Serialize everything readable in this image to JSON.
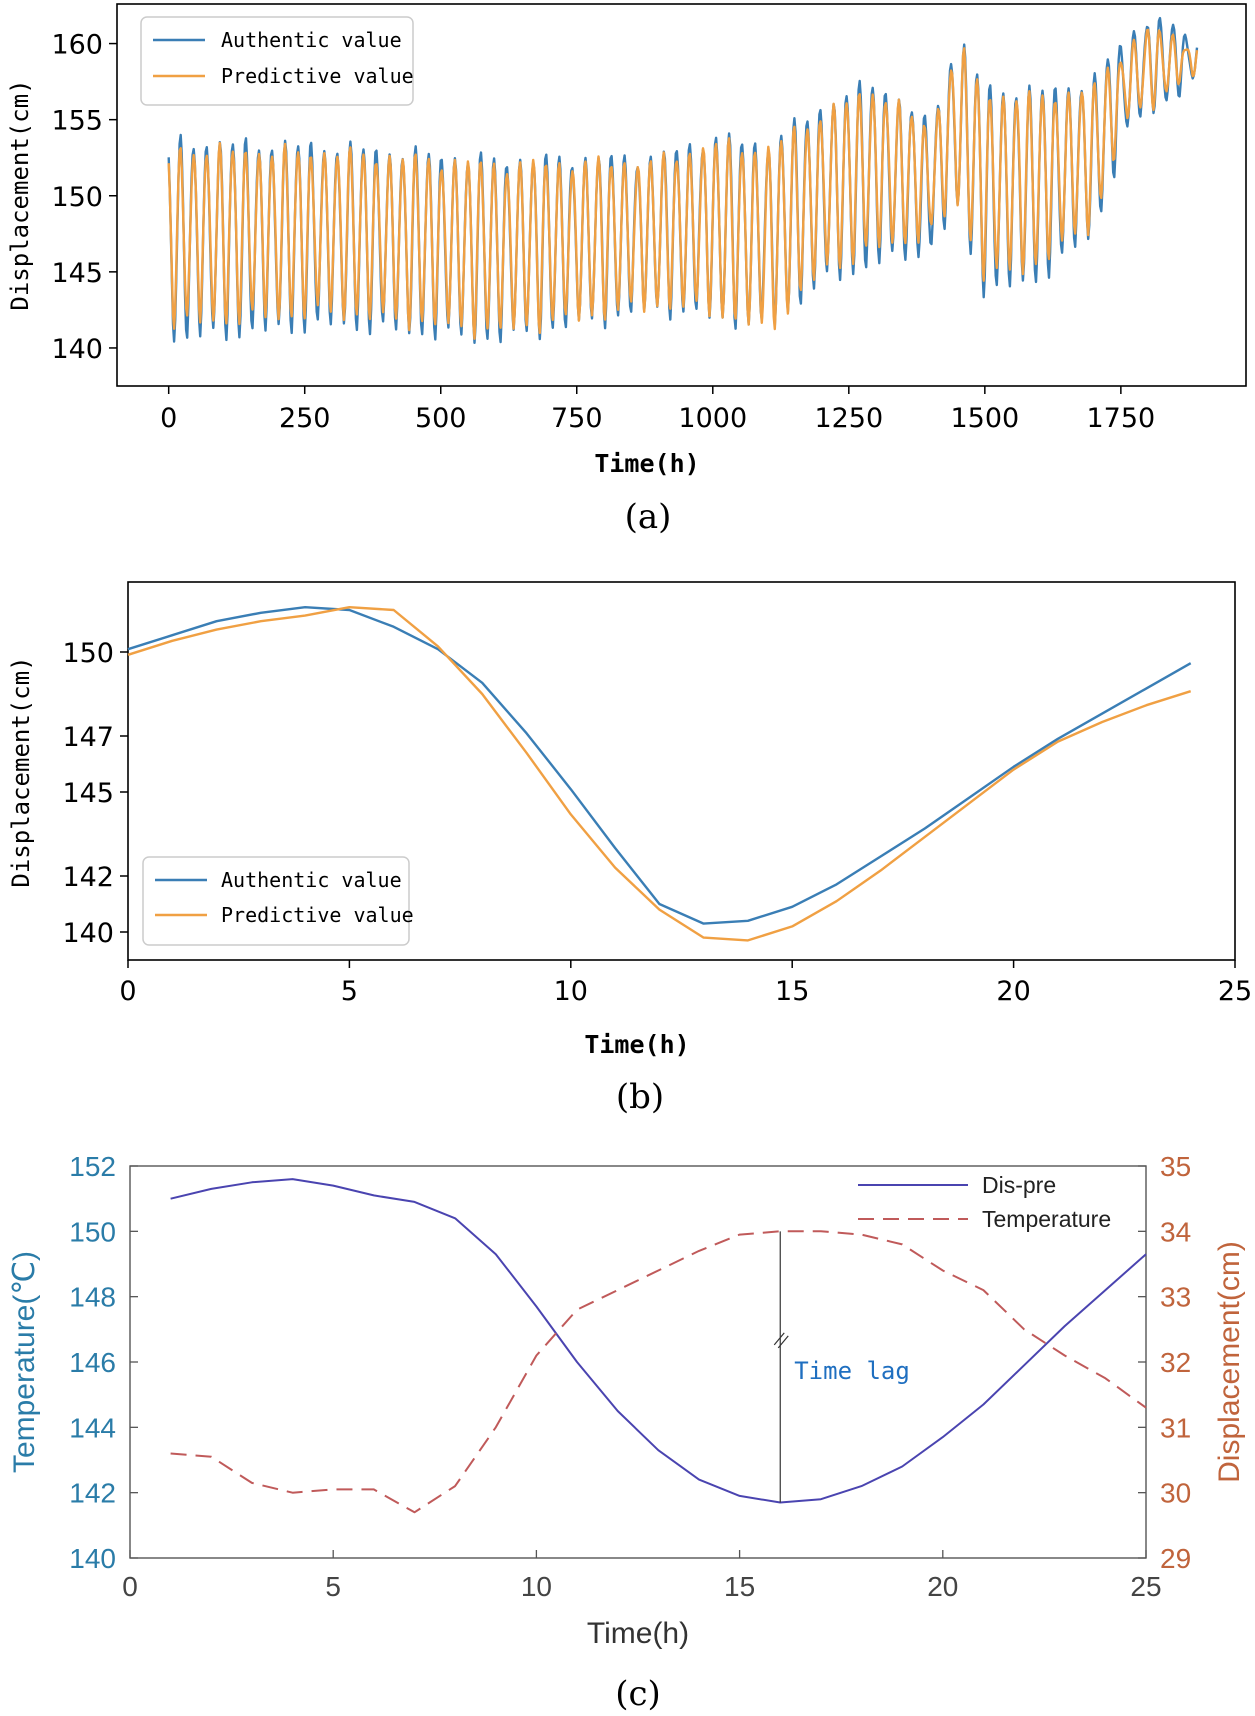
{
  "colors": {
    "authentic": "#3a7eb5",
    "predictive": "#f0a043",
    "dis_pre": "#4a44b0",
    "temperature": "#c05a5a",
    "left_axis_c": "#2a7ca8",
    "right_axis_c": "#c0643c",
    "annotation": "#1f6fc0"
  },
  "chart_data": [
    {
      "type": "line",
      "caption": "(a)",
      "xlabel": "Time(h)",
      "ylabel": "Displacement(cm)",
      "xlim": [
        -95,
        1980
      ],
      "ylim": [
        137.5,
        162.6
      ],
      "xticks": [
        0,
        250,
        500,
        750,
        1000,
        1250,
        1500,
        1750
      ],
      "yticks": [
        140,
        145,
        150,
        155,
        160
      ],
      "legend": {
        "placement": "top-left",
        "entries": [
          "Authentic value",
          "Predictive value"
        ]
      },
      "series": [
        {
          "name": "Authentic value",
          "color_key": "authentic",
          "anchors": {
            "x": [
              0,
              300,
              600,
              900,
              1000,
              1100,
              1200,
              1300,
              1400,
              1450,
              1500,
              1600,
              1700,
              1760,
              1800,
              1890
            ],
            "max": [
              153.5,
              153.2,
              152.3,
              152.5,
              153.8,
              153.3,
              155.8,
              157.5,
              154.5,
              160.5,
              157.0,
              156.8,
              157.5,
              160.5,
              161.5,
              160.5
            ],
            "min": [
              140.5,
              141.5,
              140.5,
              142.5,
              142.0,
              141.2,
              144.3,
              145.5,
              146.5,
              149.0,
              143.5,
              144.5,
              147.5,
              154.0,
              155.5,
              157.5
            ]
          }
        },
        {
          "name": "Predictive value",
          "color_key": "predictive",
          "anchors": {
            "x": [
              0,
              300,
              600,
              900,
              1000,
              1100,
              1200,
              1300,
              1400,
              1450,
              1500,
              1600,
              1700,
              1760,
              1800,
              1890
            ],
            "max": [
              153.0,
              152.8,
              152.0,
              152.2,
              153.4,
              153.0,
              155.3,
              157.0,
              154.2,
              160.0,
              156.6,
              156.4,
              157.0,
              159.8,
              160.8,
              160.0
            ],
            "min": [
              141.5,
              142.3,
              141.0,
              142.8,
              142.4,
              141.0,
              145.0,
              146.5,
              147.5,
              149.5,
              144.5,
              145.5,
              148.2,
              154.8,
              156.0,
              158.0
            ]
          }
        }
      ],
      "period_h": 24
    },
    {
      "type": "line",
      "caption": "(b)",
      "xlabel": "Time(h)",
      "ylabel": "Displacement(cm)",
      "xlim": [
        0,
        25
      ],
      "ylim": [
        139.0,
        152.5
      ],
      "xticks": [
        0,
        5,
        10,
        15,
        20,
        25
      ],
      "yticks": [
        140,
        142,
        145,
        147,
        150
      ],
      "legend": {
        "placement": "bottom-left",
        "entries": [
          "Authentic value",
          "Predictive value"
        ]
      },
      "x": [
        0,
        1,
        2,
        3,
        4,
        5,
        6,
        7,
        8,
        9,
        10,
        11,
        12,
        13,
        14,
        15,
        16,
        17,
        18,
        19,
        20,
        21,
        22,
        23,
        24
      ],
      "series": [
        {
          "name": "Authentic value",
          "color_key": "authentic",
          "values": [
            150.1,
            150.6,
            151.1,
            151.4,
            151.6,
            151.5,
            150.9,
            150.1,
            148.9,
            147.1,
            145.1,
            143.0,
            141.0,
            140.3,
            140.4,
            140.9,
            141.7,
            142.7,
            143.7,
            144.8,
            145.9,
            146.9,
            147.8,
            148.7,
            149.6
          ]
        },
        {
          "name": "Predictive value",
          "color_key": "predictive",
          "values": [
            149.9,
            150.4,
            150.8,
            151.1,
            151.3,
            151.6,
            151.5,
            150.2,
            148.5,
            146.4,
            144.2,
            142.3,
            140.8,
            139.8,
            139.7,
            140.2,
            141.1,
            142.2,
            143.4,
            144.6,
            145.8,
            146.8,
            147.5,
            148.1,
            148.6
          ]
        }
      ]
    },
    {
      "type": "line",
      "caption": "(c)",
      "xlabel": "Time(h)",
      "ylabel_left": "Temperature(℃)",
      "ylabel_right": "Displacement(cm)",
      "xlim": [
        0,
        25
      ],
      "ylim_left": [
        140,
        152
      ],
      "ylim_right": [
        29,
        35
      ],
      "xticks": [
        0,
        5,
        10,
        15,
        20,
        25
      ],
      "yticks_left": [
        140,
        142,
        144,
        146,
        148,
        150,
        152
      ],
      "yticks_right": [
        29,
        30,
        31,
        32,
        33,
        34,
        35
      ],
      "legend": {
        "placement": "top-right",
        "entries": [
          "Dis-pre",
          "Temperature"
        ]
      },
      "annotation": {
        "text": "Time lag",
        "x": 16,
        "y_left_from": 141.7,
        "y_left_to": 150.0
      },
      "x": [
        1,
        2,
        3,
        4,
        5,
        6,
        7,
        8,
        9,
        10,
        11,
        12,
        13,
        14,
        15,
        16,
        17,
        18,
        19,
        20,
        21,
        22,
        23,
        24,
        25
      ],
      "series": [
        {
          "name": "Dis-pre",
          "axis": "left",
          "style": "solid",
          "color_key": "dis_pre",
          "values": [
            151.0,
            151.3,
            151.5,
            151.6,
            151.4,
            151.1,
            150.9,
            150.4,
            149.3,
            147.7,
            146.0,
            144.5,
            143.3,
            142.4,
            141.9,
            141.7,
            141.8,
            142.2,
            142.8,
            143.7,
            144.7,
            145.9,
            147.1,
            148.2,
            149.3
          ]
        },
        {
          "name": "Temperature",
          "axis": "right",
          "style": "dashed",
          "color_key": "temperature",
          "values": [
            30.6,
            30.55,
            30.15,
            30.0,
            30.05,
            30.05,
            29.7,
            30.1,
            31.0,
            32.1,
            32.8,
            33.1,
            33.4,
            33.7,
            33.95,
            34.0,
            34.0,
            33.95,
            33.8,
            33.4,
            33.1,
            32.5,
            32.1,
            31.75,
            31.3
          ]
        }
      ]
    }
  ]
}
